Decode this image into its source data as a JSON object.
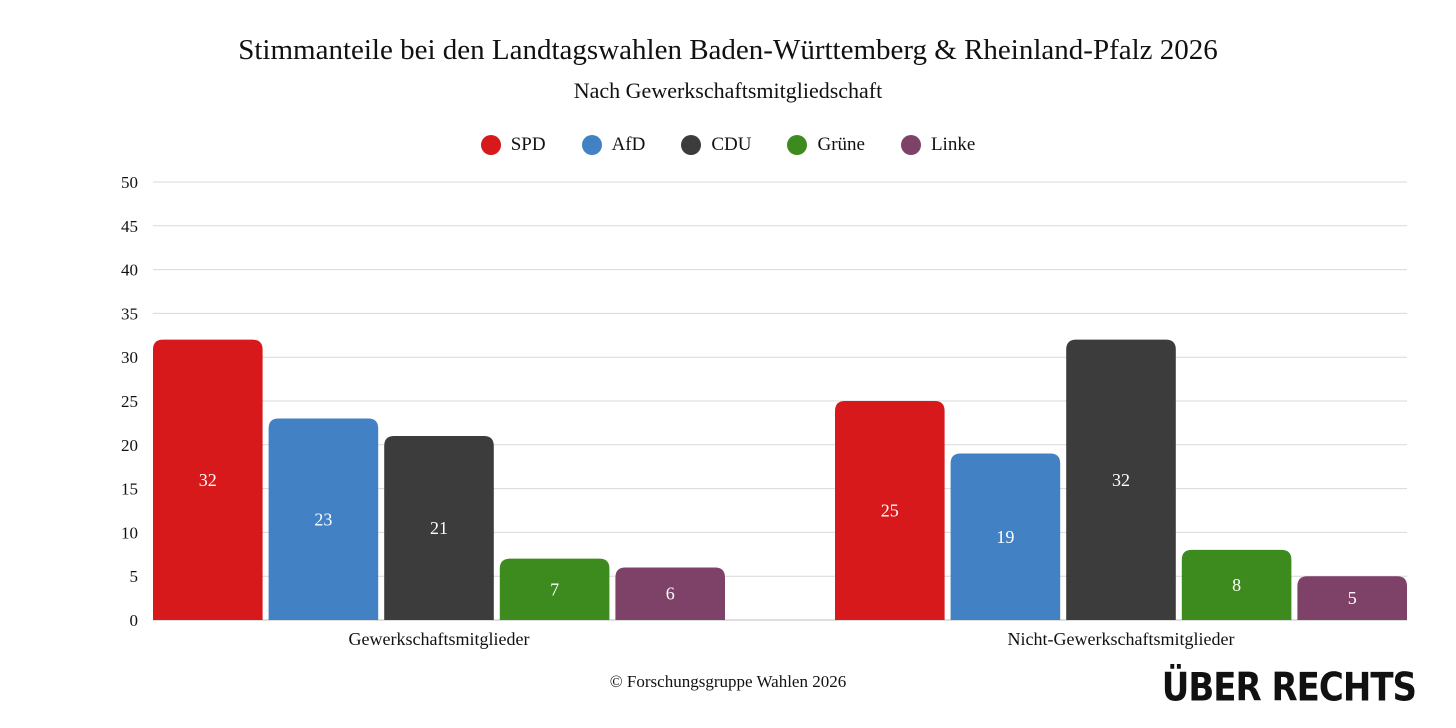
{
  "chart_data": {
    "type": "bar",
    "title": "Stimmanteile bei den Landtagswahlen Baden-Württemberg & Rheinland-Pfalz 2026",
    "subtitle": "Nach Gewerkschaftsmitgliedschaft",
    "categories": [
      "Gewerkschaftsmitglieder",
      "Nicht-Gewerkschaftsmitglieder"
    ],
    "series": [
      {
        "name": "SPD",
        "color": "#d7191c",
        "values": [
          32,
          25
        ]
      },
      {
        "name": "AfD",
        "color": "#4181c4",
        "values": [
          23,
          19
        ]
      },
      {
        "name": "CDU",
        "color": "#3c3c3c",
        "values": [
          21,
          32
        ]
      },
      {
        "name": "Grüne",
        "color": "#3d8b1e",
        "values": [
          7,
          8
        ]
      },
      {
        "name": "Linke",
        "color": "#7e4268",
        "values": [
          6,
          5
        ]
      }
    ],
    "ylim": [
      0,
      50
    ],
    "yticks": [
      0,
      5,
      10,
      15,
      20,
      25,
      30,
      35,
      40,
      45,
      50
    ],
    "grid": true,
    "legend_position": "top-center"
  },
  "source": "© Forschungsgruppe Wahlen 2026",
  "logo_text": "ÜBER RECHTS"
}
